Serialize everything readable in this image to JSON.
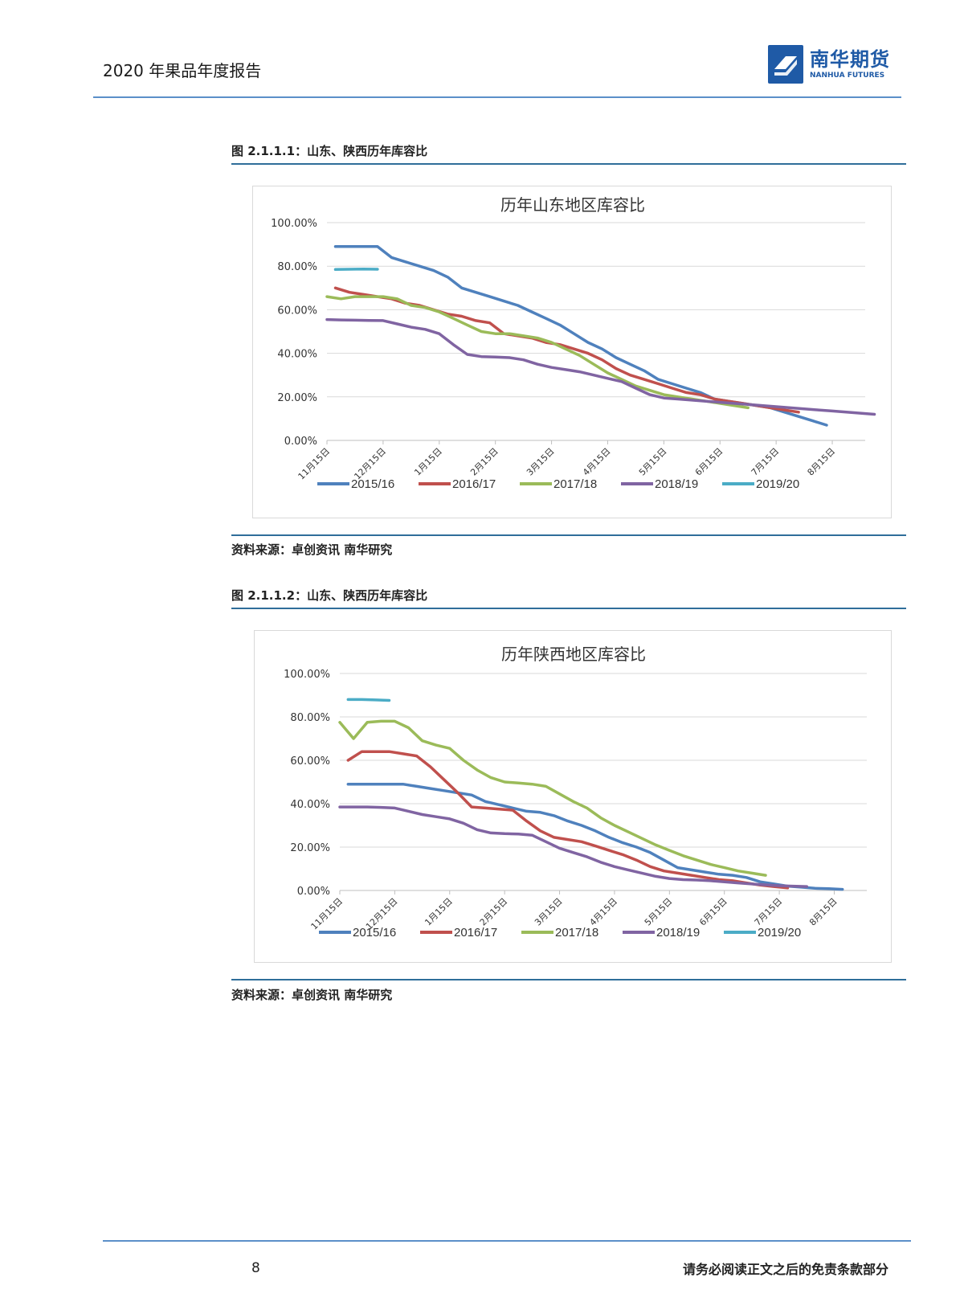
{
  "header": {
    "title": "2020 年果品年度报告",
    "logo_cn": "南华期货",
    "logo_en": "NANHUA FUTURES",
    "brand_color": "#1f5aa6"
  },
  "figures": [
    {
      "caption": "图 2.1.1.1：山东、陕西历年库容比",
      "source": "资料来源：卓创资讯 南华研究"
    },
    {
      "caption": "图 2.1.1.2：山东、陕西历年库容比",
      "source": "资料来源：卓创资讯 南华研究"
    }
  ],
  "footer": {
    "page_number": "8",
    "disclaimer": "请务必阅读正文之后的免责条款部分"
  },
  "chart_data": [
    {
      "type": "line",
      "title": "历年山东地区库容比",
      "xlabel": "",
      "ylabel": "",
      "ylim": [
        0,
        100
      ],
      "yticks": [
        "100.00%",
        "80.00%",
        "60.00%",
        "40.00%",
        "20.00%",
        "0.00%"
      ],
      "categories": [
        "11月15日",
        "12月15日",
        "1月15日",
        "2月15日",
        "3月15日",
        "4月15日",
        "5月15日",
        "6月15日",
        "7月15日",
        "8月15日"
      ],
      "grid": true,
      "legend_position": "bottom",
      "x_index": [
        0.25,
        0.5,
        0.75,
        1.0,
        1.25,
        1.5,
        1.75,
        2.0,
        2.25,
        2.5,
        2.75,
        3.0,
        3.25,
        3.5,
        3.75,
        4.0,
        4.25,
        4.5,
        4.75,
        5.0,
        5.25,
        5.5,
        5.75,
        6.0,
        6.25,
        6.5,
        6.75,
        7.0,
        7.25,
        7.5,
        7.75,
        8.0,
        8.25,
        8.5,
        8.75,
        9.0,
        9.25
      ],
      "series": [
        {
          "name": "2015/16",
          "color": "#4f81bd",
          "x_start": 0.15,
          "x_step": 0.25,
          "values": [
            89,
            89,
            89,
            89,
            84,
            82,
            80,
            78,
            75,
            70,
            68,
            66,
            64,
            62,
            59,
            56,
            53,
            49,
            45,
            42,
            38,
            35,
            32,
            28,
            26,
            24,
            22,
            19,
            18,
            17,
            16,
            15,
            13,
            11,
            9,
            7
          ]
        },
        {
          "name": "2016/17",
          "color": "#c0504d",
          "x_start": 0.15,
          "x_step": 0.25,
          "values": [
            70,
            68,
            67,
            66,
            65,
            63,
            62,
            60,
            58,
            57,
            55,
            54,
            49,
            48,
            47,
            45,
            44,
            42,
            40,
            37,
            33,
            30,
            28,
            26,
            24,
            22,
            21,
            19,
            18,
            17,
            16,
            15,
            14,
            13
          ]
        },
        {
          "name": "2017/18",
          "color": "#9bbb59",
          "x_start": 0.0,
          "x_step": 0.25,
          "values": [
            66,
            65,
            66,
            66,
            66,
            65,
            62,
            61,
            59,
            56,
            53,
            50,
            49,
            49,
            48,
            47,
            45,
            42,
            39,
            35,
            31,
            28,
            25,
            23,
            21,
            20,
            19,
            18,
            17,
            16,
            15
          ]
        },
        {
          "name": "2018/19",
          "color": "#8064a2",
          "x_start": 0.0,
          "x_step": 0.25,
          "values": [
            55.5,
            55.3,
            55.2,
            55.1,
            55,
            53.5,
            52,
            51,
            49,
            44,
            39.5,
            38.5,
            38.3,
            38,
            37,
            35,
            33.5,
            32.5,
            31.5,
            30,
            28.5,
            27,
            24,
            21,
            19.5,
            19,
            18.5,
            18,
            17.5,
            17,
            16.5,
            16,
            15.5,
            15,
            14.5,
            14,
            13.5,
            13,
            12.5,
            12
          ]
        },
        {
          "name": "2019/20",
          "color": "#4bacc6",
          "x_start": 0.15,
          "x_step": 0.25,
          "values": [
            78.5,
            78.6,
            78.7,
            78.6
          ]
        }
      ]
    },
    {
      "type": "line",
      "title": "历年陕西地区库容比",
      "xlabel": "",
      "ylabel": "",
      "ylim": [
        0,
        100
      ],
      "yticks": [
        "100.00%",
        "80.00%",
        "60.00%",
        "40.00%",
        "20.00%",
        "0.00%"
      ],
      "categories": [
        "11月15日",
        "12月15日",
        "1月15日",
        "2月15日",
        "3月15日",
        "4月15日",
        "5月15日",
        "6月15日",
        "7月15日",
        "8月15日"
      ],
      "grid": true,
      "legend_position": "bottom",
      "series": [
        {
          "name": "2015/16",
          "color": "#4f81bd",
          "x_start": 0.15,
          "x_step": 0.25,
          "values": [
            49,
            49,
            49,
            49,
            49,
            48,
            47,
            46,
            45,
            44,
            41,
            39.5,
            38,
            36.5,
            36,
            34.5,
            32,
            30,
            27.5,
            24.5,
            22,
            20,
            17.5,
            14,
            10.5,
            9.5,
            8.5,
            7.5,
            7,
            6,
            4,
            3,
            2,
            1.5,
            1,
            0.8,
            0.5
          ]
        },
        {
          "name": "2016/17",
          "color": "#c0504d",
          "x_start": 0.15,
          "x_step": 0.25,
          "values": [
            60,
            64,
            64,
            64,
            63,
            62,
            57,
            51,
            45,
            38.5,
            38,
            37.5,
            37,
            32,
            27.5,
            24.5,
            23.5,
            22.5,
            20.5,
            18.5,
            16.5,
            14,
            11,
            9,
            8,
            7,
            6,
            5,
            4.5,
            3.5,
            2.5,
            1.8,
            1.2
          ]
        },
        {
          "name": "2017/18",
          "color": "#9bbb59",
          "x_start": 0.0,
          "x_step": 0.25,
          "values": [
            77.5,
            70,
            77.5,
            78,
            78,
            75,
            69,
            67,
            65.5,
            60,
            55.5,
            52,
            50,
            49.5,
            49,
            48,
            44.5,
            41,
            38,
            33.5,
            30,
            27,
            24,
            21,
            18.5,
            16,
            14,
            12,
            10.5,
            9,
            8,
            7
          ]
        },
        {
          "name": "2018/19",
          "color": "#8064a2",
          "x_start": 0.0,
          "x_step": 0.25,
          "values": [
            38.5,
            38.5,
            38.5,
            38.3,
            38,
            36.5,
            35,
            34,
            33,
            31,
            28,
            26.5,
            26.2,
            26,
            25.5,
            22.5,
            19.5,
            17.5,
            15.5,
            13,
            11,
            9.5,
            8,
            6.5,
            5.5,
            5,
            4.8,
            4.5,
            4,
            3.5,
            3,
            2.6,
            2.2,
            2,
            1.8
          ]
        },
        {
          "name": "2019/20",
          "color": "#4bacc6",
          "x_start": 0.15,
          "x_step": 0.25,
          "values": [
            88,
            88,
            87.8,
            87.6
          ]
        }
      ]
    }
  ]
}
